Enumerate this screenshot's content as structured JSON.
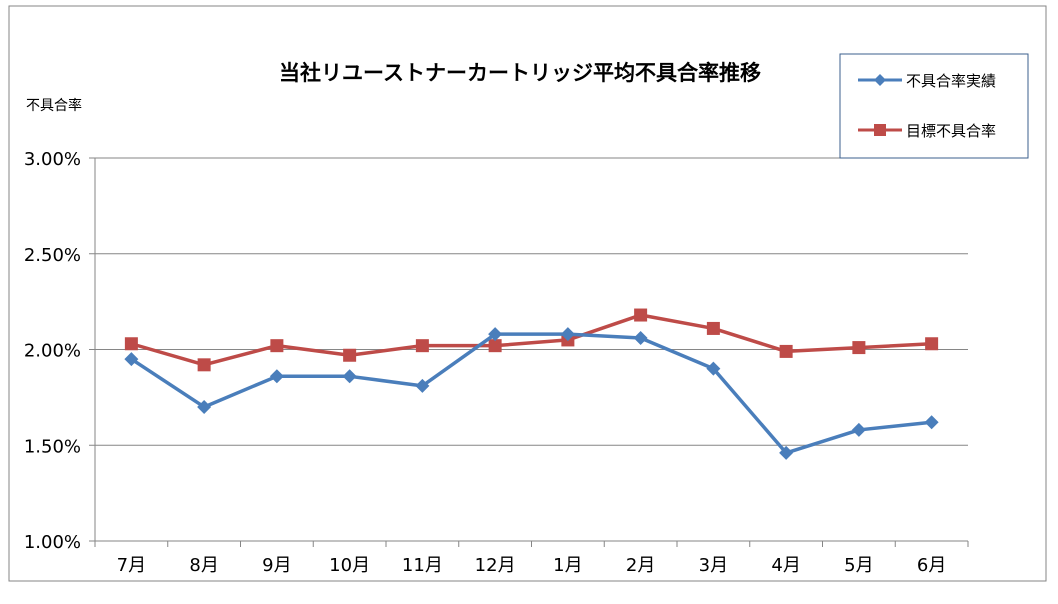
{
  "chart_data": {
    "type": "line",
    "title": "当社リユーストナーカートリッジ平均不具合率推移",
    "ylabel": "不具合率",
    "xlabel": "",
    "categories": [
      "7月",
      "8月",
      "9月",
      "10月",
      "11月",
      "12月",
      "1月",
      "2月",
      "3月",
      "4月",
      "5月",
      "6月"
    ],
    "ylim": [
      1.0,
      3.0
    ],
    "yticks": [
      "1.00%",
      "1.50%",
      "2.00%",
      "2.50%",
      "3.00%"
    ],
    "ytick_values": [
      1.0,
      1.5,
      2.0,
      2.5,
      3.0
    ],
    "grid": true,
    "legend_position": "top-right",
    "series": [
      {
        "name": "不具合率実績",
        "color": "#4a7ebb",
        "marker": "diamond",
        "values": [
          1.95,
          1.7,
          1.86,
          1.86,
          1.81,
          2.08,
          2.08,
          2.06,
          1.9,
          1.46,
          1.58,
          1.62
        ]
      },
      {
        "name": "目標不具合率",
        "color": "#be4b48",
        "marker": "square",
        "values": [
          2.03,
          1.92,
          2.02,
          1.97,
          2.02,
          2.02,
          2.05,
          2.18,
          2.11,
          1.99,
          2.01,
          2.03
        ]
      }
    ]
  }
}
